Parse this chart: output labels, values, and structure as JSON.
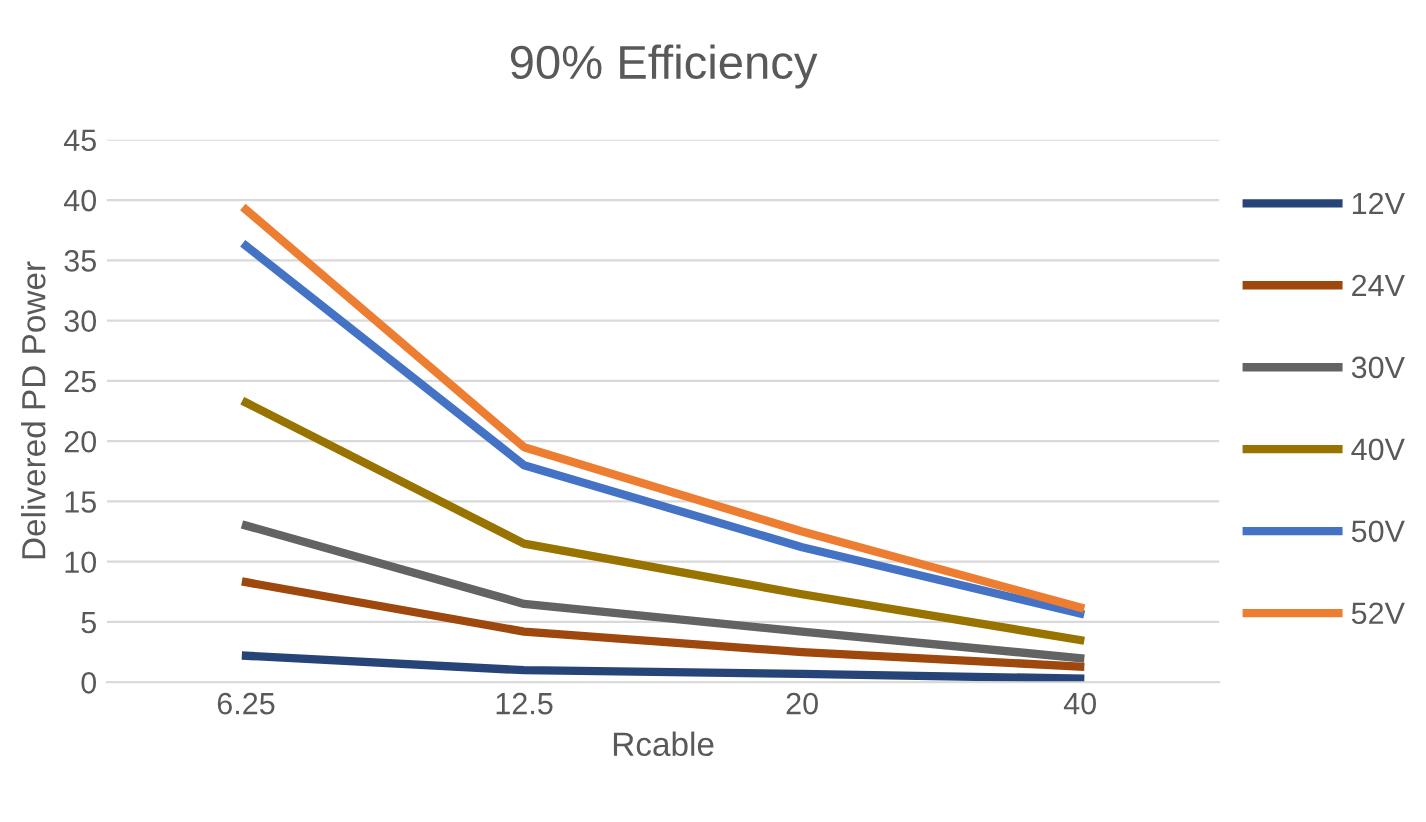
{
  "chart_data": {
    "type": "line",
    "title": "90% Efficiency",
    "xlabel": "Rcable",
    "ylabel": "Delivered PD Power",
    "categories": [
      "6.25",
      "12.5",
      "20",
      "40"
    ],
    "series": [
      {
        "name": "12V",
        "color": "#264478",
        "values": [
          2.2,
          1.0,
          0.7,
          0.3
        ]
      },
      {
        "name": "24V",
        "color": "#9e480e",
        "values": [
          8.3,
          4.2,
          2.5,
          1.3
        ]
      },
      {
        "name": "30V",
        "color": "#636363",
        "values": [
          13,
          6.5,
          4.2,
          2.0
        ]
      },
      {
        "name": "40V",
        "color": "#997300",
        "values": [
          23.2,
          11.5,
          7.3,
          3.5
        ]
      },
      {
        "name": "50V",
        "color": "#4472c4",
        "values": [
          36.2,
          18,
          11.2,
          5.7
        ]
      },
      {
        "name": "52V",
        "color": "#ed7d31",
        "values": [
          39.2,
          19.5,
          12.5,
          6.2
        ]
      }
    ],
    "ylim": [
      0,
      45
    ],
    "yticks": [
      0,
      5,
      10,
      15,
      20,
      25,
      30,
      35,
      40,
      45
    ],
    "grid": "y",
    "legend": "right",
    "marker": "none",
    "line_style": "solid"
  }
}
